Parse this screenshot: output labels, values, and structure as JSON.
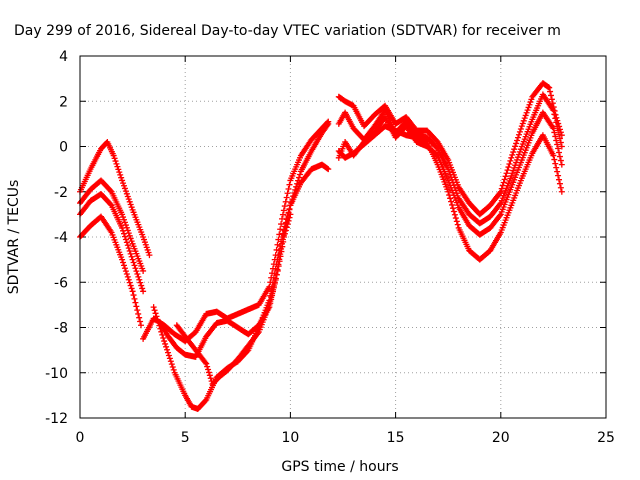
{
  "chart_data": {
    "type": "scatter",
    "title": "Day 299 of 2016, Sidereal Day-to-day VTEC variation (SDTVAR) for receiver m",
    "xlabel": "GPS time / hours",
    "ylabel": "SDTVAR / TECUs",
    "xlim": [
      0,
      25
    ],
    "ylim": [
      -12,
      4
    ],
    "xticks": [
      0,
      5,
      10,
      15,
      20,
      25
    ],
    "yticks": [
      -12,
      -10,
      -8,
      -6,
      -4,
      -2,
      0,
      2,
      4
    ],
    "grid": true,
    "marker": "+",
    "color": "#ff0000",
    "series": [
      {
        "x": [
          0.0,
          0.5,
          1.0,
          1.3,
          1.6,
          2.0,
          2.5,
          3.0,
          3.3
        ],
        "y": [
          -2.0,
          -1.0,
          -0.1,
          0.2,
          -0.4,
          -1.5,
          -2.8,
          -4.0,
          -4.8
        ]
      },
      {
        "x": [
          0.0,
          0.5,
          1.0,
          1.5,
          2.0,
          2.5,
          3.0
        ],
        "y": [
          -2.5,
          -1.9,
          -1.5,
          -2.0,
          -3.0,
          -4.3,
          -5.5
        ]
      },
      {
        "x": [
          0.0,
          0.5,
          1.0,
          1.5,
          2.0,
          2.5,
          3.0
        ],
        "y": [
          -3.0,
          -2.4,
          -2.1,
          -2.6,
          -3.6,
          -5.0,
          -6.4
        ]
      },
      {
        "x": [
          0.0,
          0.5,
          1.0,
          1.5,
          2.0,
          2.5,
          2.9
        ],
        "y": [
          -4.0,
          -3.5,
          -3.1,
          -3.8,
          -5.0,
          -6.4,
          -7.9
        ]
      },
      {
        "x": [
          3.0,
          3.5,
          4.0,
          4.5,
          5.0,
          5.5,
          6.0,
          6.5,
          7.0,
          7.5,
          8.0,
          8.5,
          9.0,
          9.3,
          9.6,
          10.0,
          10.5,
          11.0,
          11.5,
          11.8
        ],
        "y": [
          -8.5,
          -7.6,
          -7.9,
          -8.3,
          -8.6,
          -8.2,
          -7.4,
          -7.3,
          -7.6,
          -7.4,
          -7.2,
          -7.0,
          -6.2,
          -4.8,
          -3.2,
          -1.5,
          -0.4,
          0.3,
          0.8,
          1.1
        ]
      },
      {
        "x": [
          3.8,
          4.2,
          4.6,
          5.0,
          5.5,
          6.0,
          6.5,
          7.0,
          7.5,
          8.0,
          8.5,
          9.0,
          9.3,
          9.6,
          10.0,
          10.5,
          11.0,
          11.5,
          11.8
        ],
        "y": [
          -7.8,
          -8.4,
          -8.9,
          -9.2,
          -9.3,
          -8.4,
          -7.8,
          -7.7,
          -8.0,
          -8.3,
          -7.9,
          -7.1,
          -5.9,
          -4.3,
          -2.6,
          -1.1,
          -0.2,
          0.6,
          1.0
        ]
      },
      {
        "x": [
          3.5,
          4.0,
          4.5,
          5.0,
          5.3,
          5.6,
          6.0,
          6.5,
          7.0,
          7.5,
          8.0,
          8.5,
          9.0,
          9.3,
          9.6,
          10.0,
          10.5,
          11.0,
          11.5,
          11.8
        ],
        "y": [
          -7.1,
          -8.6,
          -10.0,
          -11.0,
          -11.5,
          -11.6,
          -11.2,
          -10.2,
          -9.8,
          -9.5,
          -9.0,
          -8.0,
          -6.8,
          -5.4,
          -4.0,
          -2.6,
          -1.6,
          -1.0,
          -0.8,
          -1.0
        ]
      },
      {
        "x": [
          4.6,
          5.0,
          5.5,
          6.0,
          6.3,
          6.6,
          7.0,
          7.5,
          8.0,
          8.5,
          9.0,
          9.4,
          9.7,
          10.0
        ],
        "y": [
          -7.9,
          -8.4,
          -9.0,
          -9.6,
          -10.5,
          -10.2,
          -9.9,
          -9.4,
          -8.8,
          -8.2,
          -7.0,
          -5.5,
          -4.0,
          -3.0
        ]
      },
      {
        "x": [
          12.3,
          12.6,
          13.0,
          13.5,
          14.0,
          14.5,
          15.0,
          15.5,
          16.0,
          16.5,
          17.0,
          17.5,
          18.0,
          18.5,
          19.0,
          19.5,
          20.0,
          20.5,
          21.0,
          21.5,
          22.0,
          22.3,
          22.6,
          22.9
        ],
        "y": [
          2.2,
          2.0,
          1.8,
          0.9,
          1.4,
          1.8,
          1.0,
          1.3,
          0.7,
          0.7,
          0.2,
          -0.6,
          -1.8,
          -2.5,
          -3.0,
          -2.6,
          -2.0,
          -0.5,
          0.9,
          2.2,
          2.8,
          2.6,
          1.4,
          0.5
        ]
      },
      {
        "x": [
          12.3,
          12.6,
          13.0,
          13.5,
          14.0,
          14.5,
          15.0,
          15.5,
          16.0,
          16.5,
          17.0,
          17.5,
          18.0,
          18.5,
          19.0,
          19.5,
          20.0,
          20.5,
          21.0,
          21.5,
          22.0,
          22.5,
          22.9
        ],
        "y": [
          1.0,
          1.5,
          0.8,
          0.3,
          0.9,
          1.6,
          0.6,
          1.1,
          0.5,
          0.4,
          -0.1,
          -1.0,
          -2.3,
          -3.0,
          -3.4,
          -3.1,
          -2.5,
          -1.3,
          0.0,
          1.2,
          2.3,
          1.6,
          0.0
        ]
      },
      {
        "x": [
          12.3,
          12.6,
          13.0,
          13.5,
          14.0,
          14.5,
          15.0,
          15.5,
          16.0,
          16.5,
          17.0,
          17.5,
          18.0,
          18.5,
          19.0,
          19.5,
          20.0,
          20.5,
          21.0,
          21.5,
          22.0,
          22.5,
          22.9
        ],
        "y": [
          -0.5,
          0.2,
          -0.4,
          0.2,
          0.6,
          1.3,
          0.4,
          0.9,
          0.2,
          0.0,
          -0.4,
          -1.5,
          -2.7,
          -3.5,
          -3.9,
          -3.6,
          -3.0,
          -1.8,
          -0.6,
          0.6,
          1.5,
          0.8,
          -0.8
        ]
      },
      {
        "x": [
          12.3,
          12.6,
          13.0,
          13.5,
          14.0,
          14.5,
          15.0,
          15.5,
          16.0,
          16.5,
          17.0,
          17.5,
          18.0,
          18.5,
          19.0,
          19.5,
          20.0,
          20.5,
          21.0,
          21.5,
          22.0,
          22.5,
          22.9
        ],
        "y": [
          -0.2,
          -0.5,
          -0.3,
          0.1,
          0.5,
          0.9,
          0.7,
          0.5,
          0.4,
          0.2,
          -0.8,
          -2.0,
          -3.6,
          -4.6,
          -5.0,
          -4.6,
          -3.8,
          -2.6,
          -1.4,
          -0.3,
          0.5,
          -0.4,
          -2.0
        ]
      }
    ]
  }
}
